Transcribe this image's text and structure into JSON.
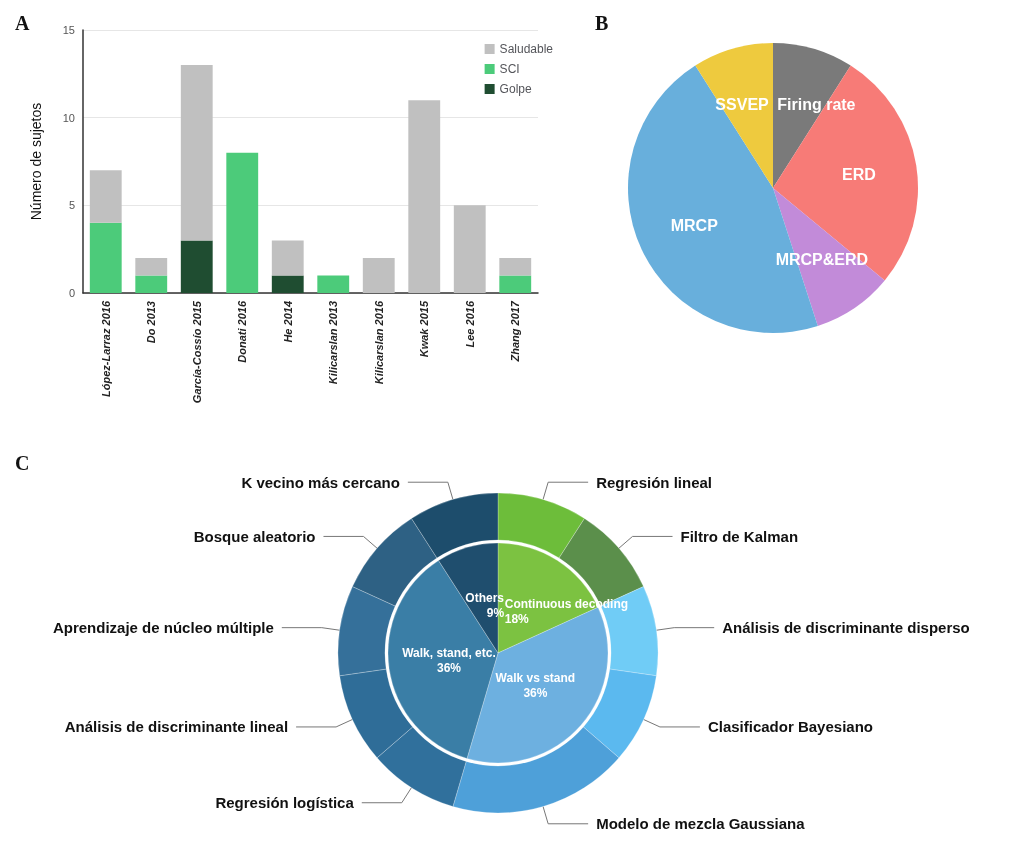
{
  "chart_data": [
    {
      "type": "bar",
      "title": "A",
      "ylabel": "Número de sujetos",
      "categories": [
        "López-Larraz 2016",
        "Do 2013",
        "García-Cossío 2015",
        "Donati 2016",
        "He 2014",
        "Kilicarslan 2013",
        "Kilicarslan 2016",
        "Kwak 2015",
        "Lee 2016",
        "Zhang 2017"
      ],
      "stacked": true,
      "series": [
        {
          "name": "Golpe",
          "color": "#1f4d31",
          "values": [
            0,
            0,
            3,
            0,
            1,
            0,
            0,
            0,
            0,
            0
          ]
        },
        {
          "name": "SCI",
          "color": "#4ccb7a",
          "values": [
            4,
            1,
            0,
            8,
            0,
            1,
            0,
            0,
            0,
            1
          ]
        },
        {
          "name": "Saludable",
          "color": "#c0c0c0",
          "values": [
            3,
            1,
            10,
            0,
            2,
            0,
            2,
            11,
            5,
            1
          ]
        }
      ],
      "ylim": [
        0,
        15
      ],
      "yticks": [
        0,
        5,
        10,
        15
      ],
      "grid": "y",
      "legend": "top right"
    },
    {
      "type": "pie",
      "title": "B",
      "categories": [
        "Firing rate",
        "ERD",
        "MRCP&ERD",
        "MRCP",
        "SSVEP"
      ],
      "values": [
        9,
        27,
        9,
        46,
        9
      ],
      "colors": [
        "#7a7a7a",
        "#f77b77",
        "#c28bd9",
        "#68afdc",
        "#eeca3e"
      ]
    },
    {
      "type": "donut",
      "title": "C",
      "categories": [
        "Regresión lineal",
        "Filtro de Kalman",
        "Análisis de discriminante disperso",
        "Clasificador Bayesiano",
        "Modelo de mezcla Gaussiana",
        "Regresión logística",
        "Análisis de discriminante lineal",
        "Aprendizaje de núcleo múltiple",
        "Bosque aleatorio",
        "K vecino más cercano"
      ],
      "values": [
        9,
        9,
        9,
        9,
        18,
        9,
        9,
        9,
        9,
        9
      ],
      "colors": [
        "#6dbd3a",
        "#5b8f4b",
        "#70ccf6",
        "#5bb9ef",
        "#4ea0d9",
        "#30709c",
        "#2f6d98",
        "#35709a",
        "#2e6184",
        "#1d4d6c"
      ]
    },
    {
      "type": "pie",
      "categories": [
        "Continuous decoding",
        "Walk vs stand",
        "Walk, stand, etc.",
        "Others"
      ],
      "values": [
        18,
        36,
        36,
        9
      ],
      "value_labels": [
        "18%",
        "36%",
        "36%",
        "9%"
      ],
      "colors": [
        "#7cc241",
        "#6db0e0",
        "#3a7ea6",
        "#1f4e6e"
      ]
    }
  ]
}
